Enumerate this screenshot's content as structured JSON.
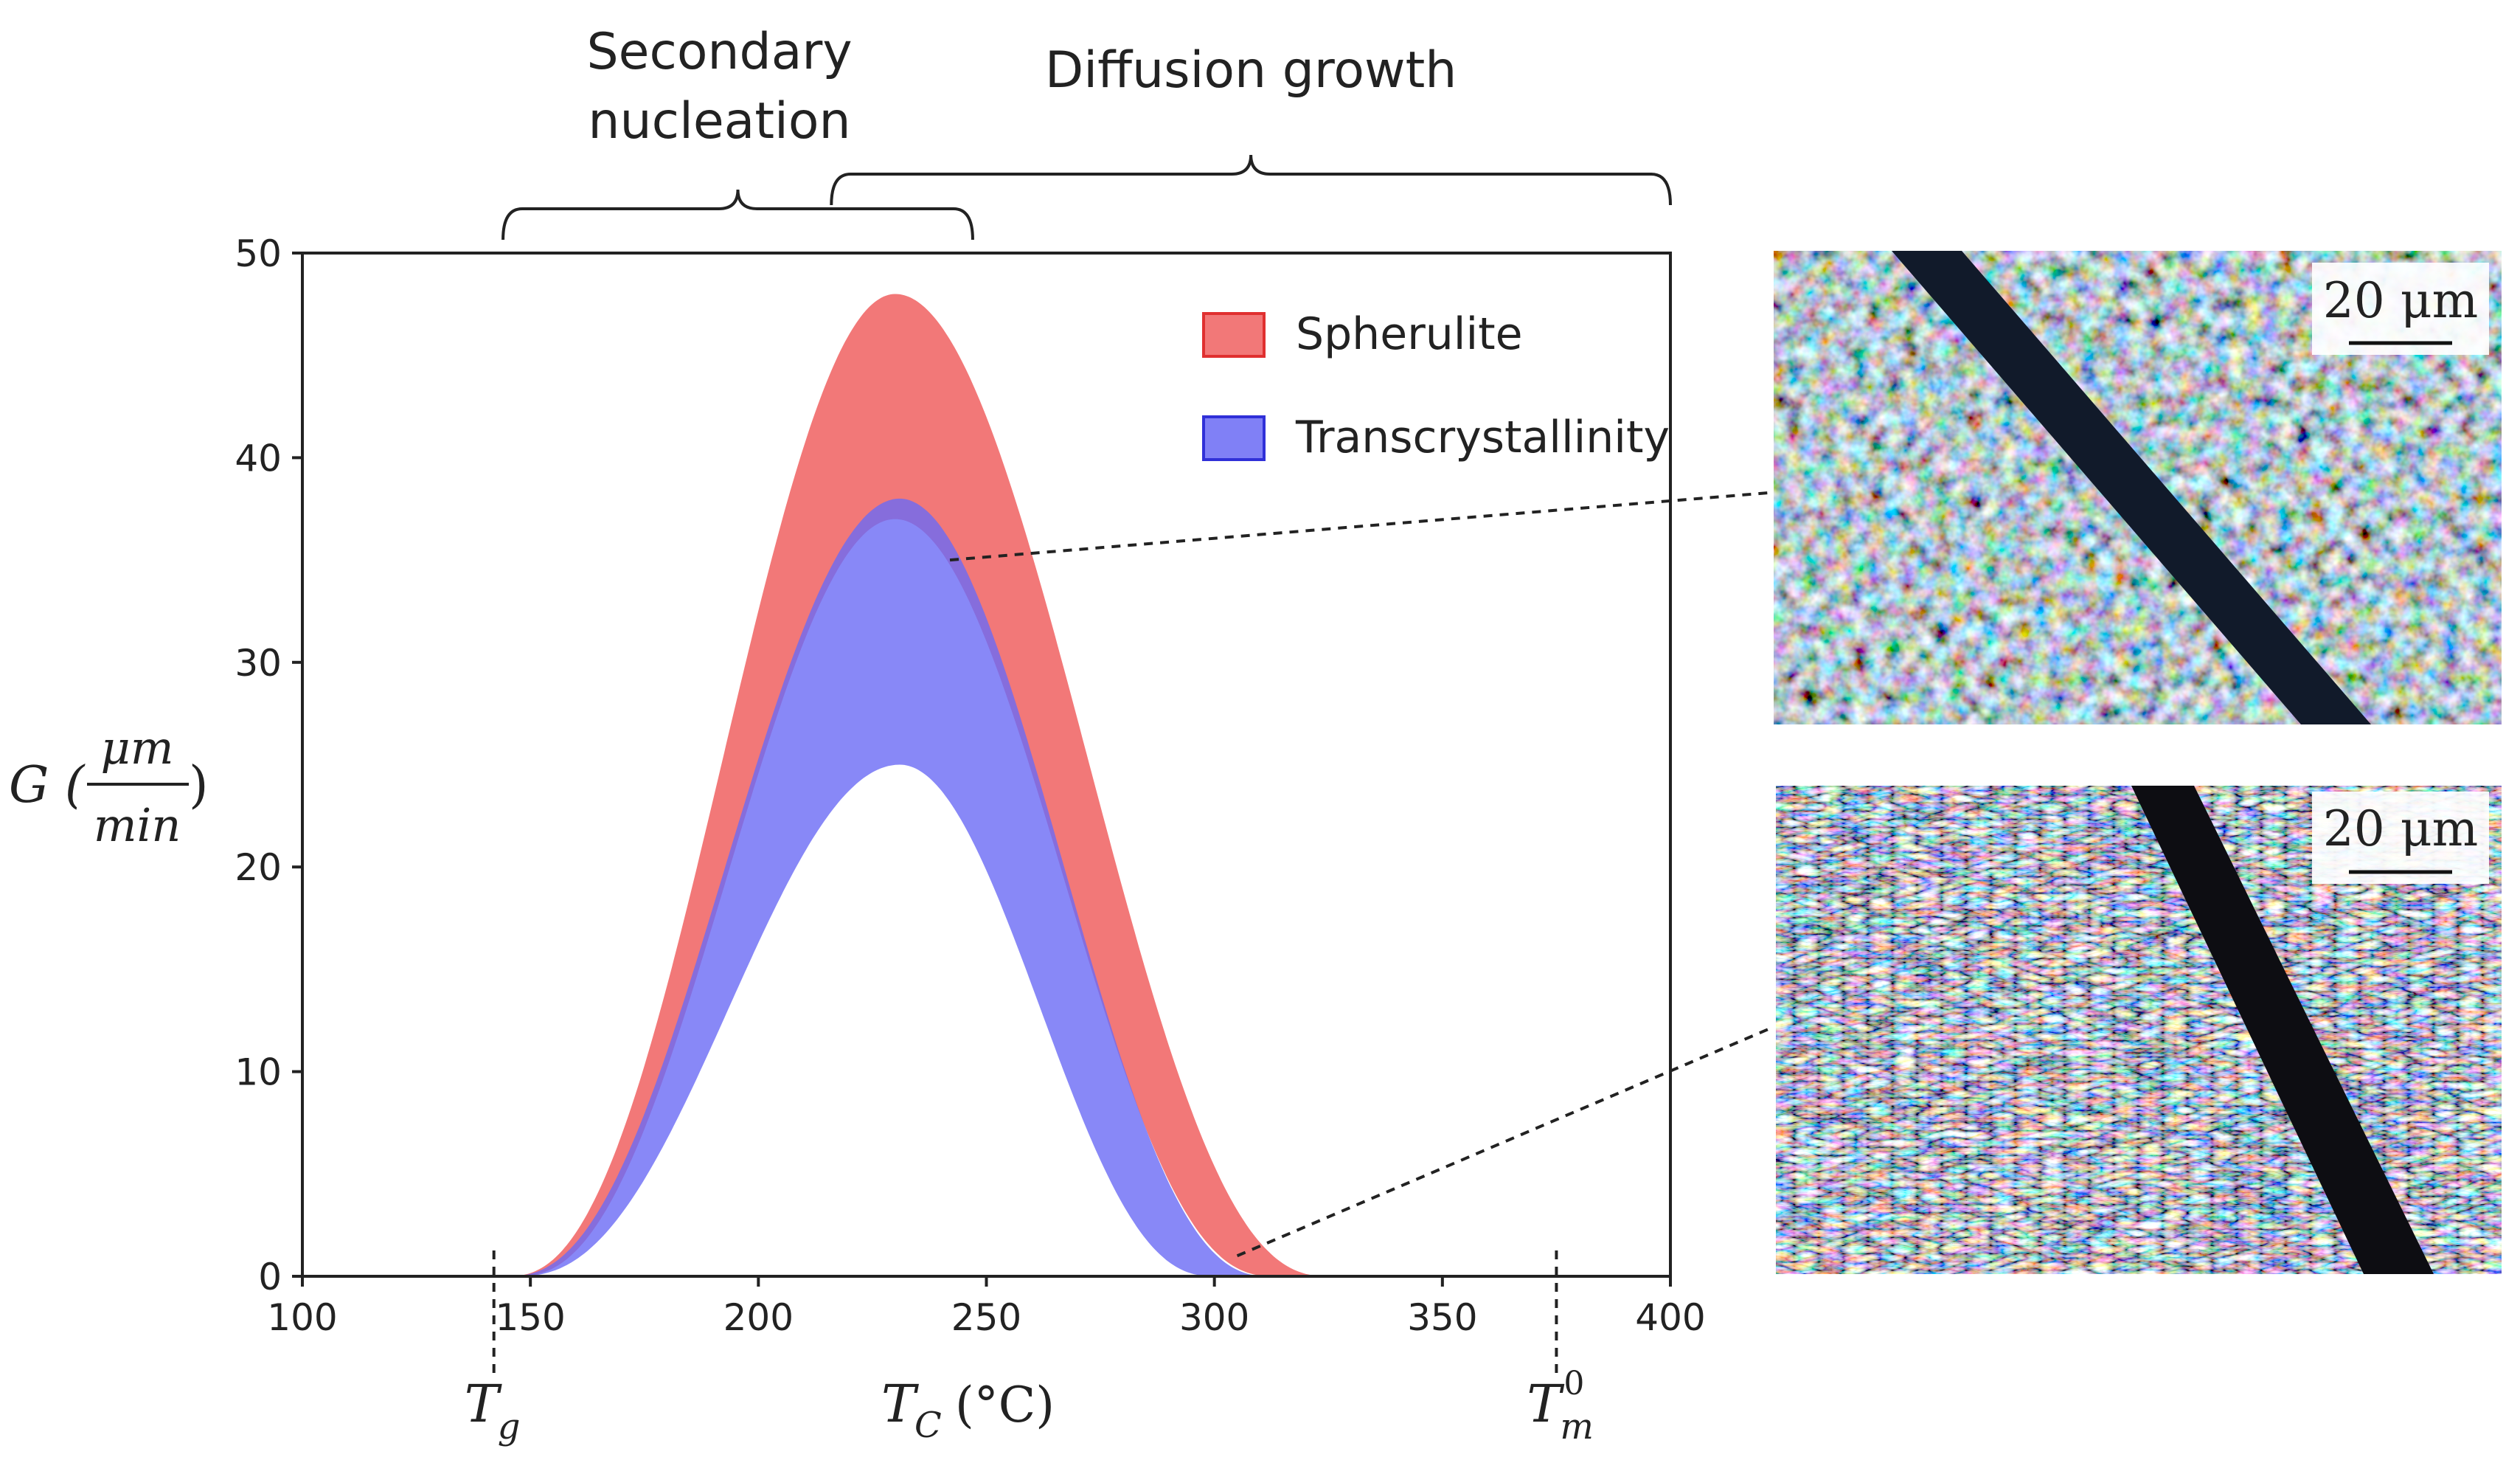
{
  "chart_data": {
    "type": "area",
    "title": "",
    "xlabel_main": "T",
    "xlabel_sub": "C",
    "xlabel_unit": "(°C)",
    "ylabel_main": "G (",
    "ylabel_frac_num": "μm",
    "ylabel_frac_den": "min",
    "ylabel_close": ")",
    "xlim": [
      100,
      400
    ],
    "ylim": [
      0,
      50
    ],
    "xticks": [
      "100",
      "150",
      "200",
      "250",
      "300",
      "350",
      "400"
    ],
    "xtick_values": [
      100,
      150,
      200,
      250,
      300,
      350,
      400
    ],
    "yticks": [
      "0",
      "10",
      "20",
      "30",
      "40",
      "50"
    ],
    "ytick_values": [
      0,
      10,
      20,
      30,
      40,
      50
    ],
    "legend_position": "top-right",
    "series": [
      {
        "name": "Spherulite",
        "color": "#f06060",
        "edge": "#e03030",
        "onset": 145,
        "end": 325,
        "peak_x": 230,
        "upper_peak": 48,
        "lower_peak": 37
      },
      {
        "name": "Transcrystallinity",
        "color": "#6a6af5",
        "edge": "#3030d8",
        "onset": 145,
        "end": 312,
        "peak_x": 231,
        "upper_peak": 38,
        "lower_peak": 25
      }
    ],
    "markers": [
      {
        "name": "Tg",
        "x": 142,
        "label_main": "T",
        "label_sub": "g"
      },
      {
        "name": "Tm0",
        "x": 375,
        "label_main": "T",
        "label_sub": "m",
        "label_sup": "0"
      }
    ],
    "regions": [
      {
        "name": "secondary-nucleation",
        "from": 144,
        "to": 247,
        "line1": "Secondary",
        "line2": "nucleation"
      },
      {
        "name": "diffusion-growth",
        "from": 216,
        "to": 400,
        "line1": "Diffusion growth"
      }
    ],
    "callouts": [
      {
        "name": "upper-micrograph",
        "x": 242,
        "y": 35
      },
      {
        "name": "lower-micrograph",
        "x": 305,
        "y": 1
      }
    ]
  },
  "micrographs": [
    {
      "name": "upper",
      "scale_label": "20 μm"
    },
    {
      "name": "lower",
      "scale_label": "20 μm"
    }
  ]
}
